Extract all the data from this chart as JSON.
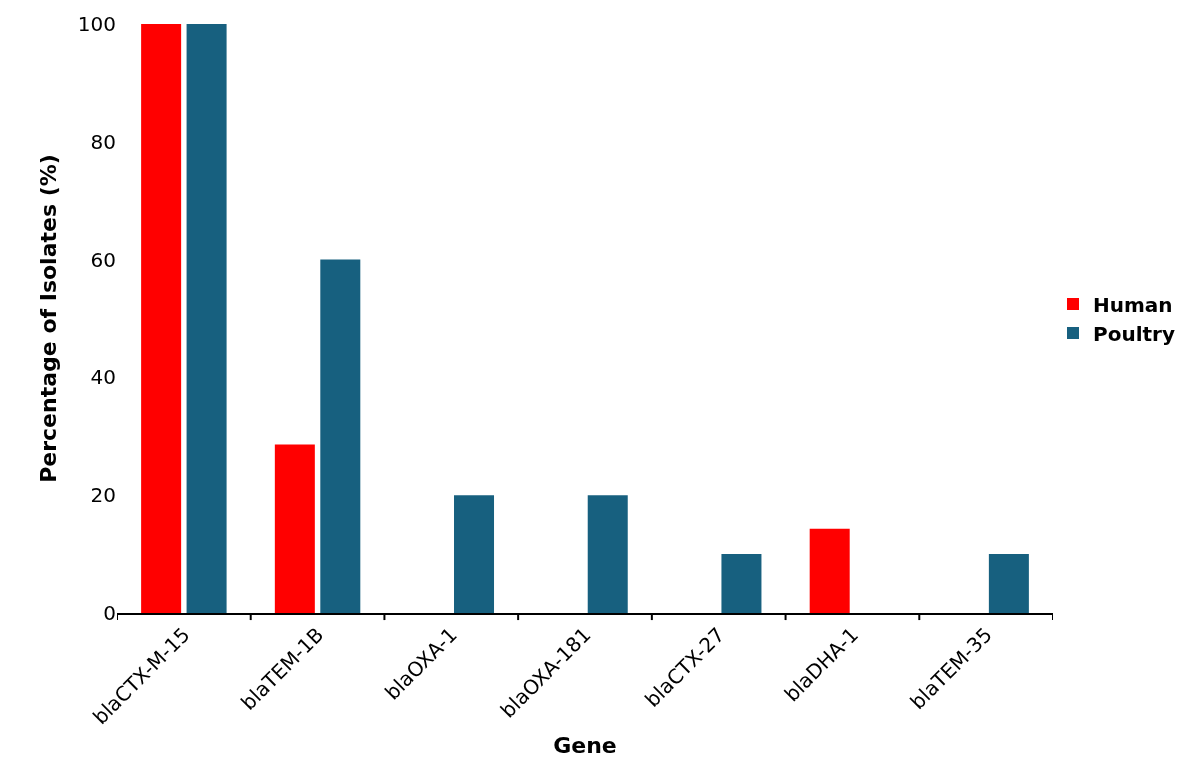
{
  "chart_data": {
    "type": "bar",
    "xlabel": "Gene",
    "ylabel": "Percentage of Isolates (%)",
    "categories": [
      "blaCTX-M-15",
      "blaTEM-1B",
      "blaOXA-1",
      "blaOXA-181",
      "blaCTX-27",
      "blaDHA-1",
      "blaTEM-35"
    ],
    "series": [
      {
        "name": "Human",
        "color": "#ff0000",
        "values": [
          100,
          28.6,
          0,
          0,
          0,
          14.3,
          0
        ]
      },
      {
        "name": "Poultry",
        "color": "#17607f",
        "values": [
          100,
          60,
          20,
          20,
          10,
          0,
          10
        ]
      }
    ],
    "ylim": [
      0,
      100
    ],
    "yticks": [
      0,
      20,
      40,
      60,
      80,
      100
    ],
    "legend": "right"
  }
}
